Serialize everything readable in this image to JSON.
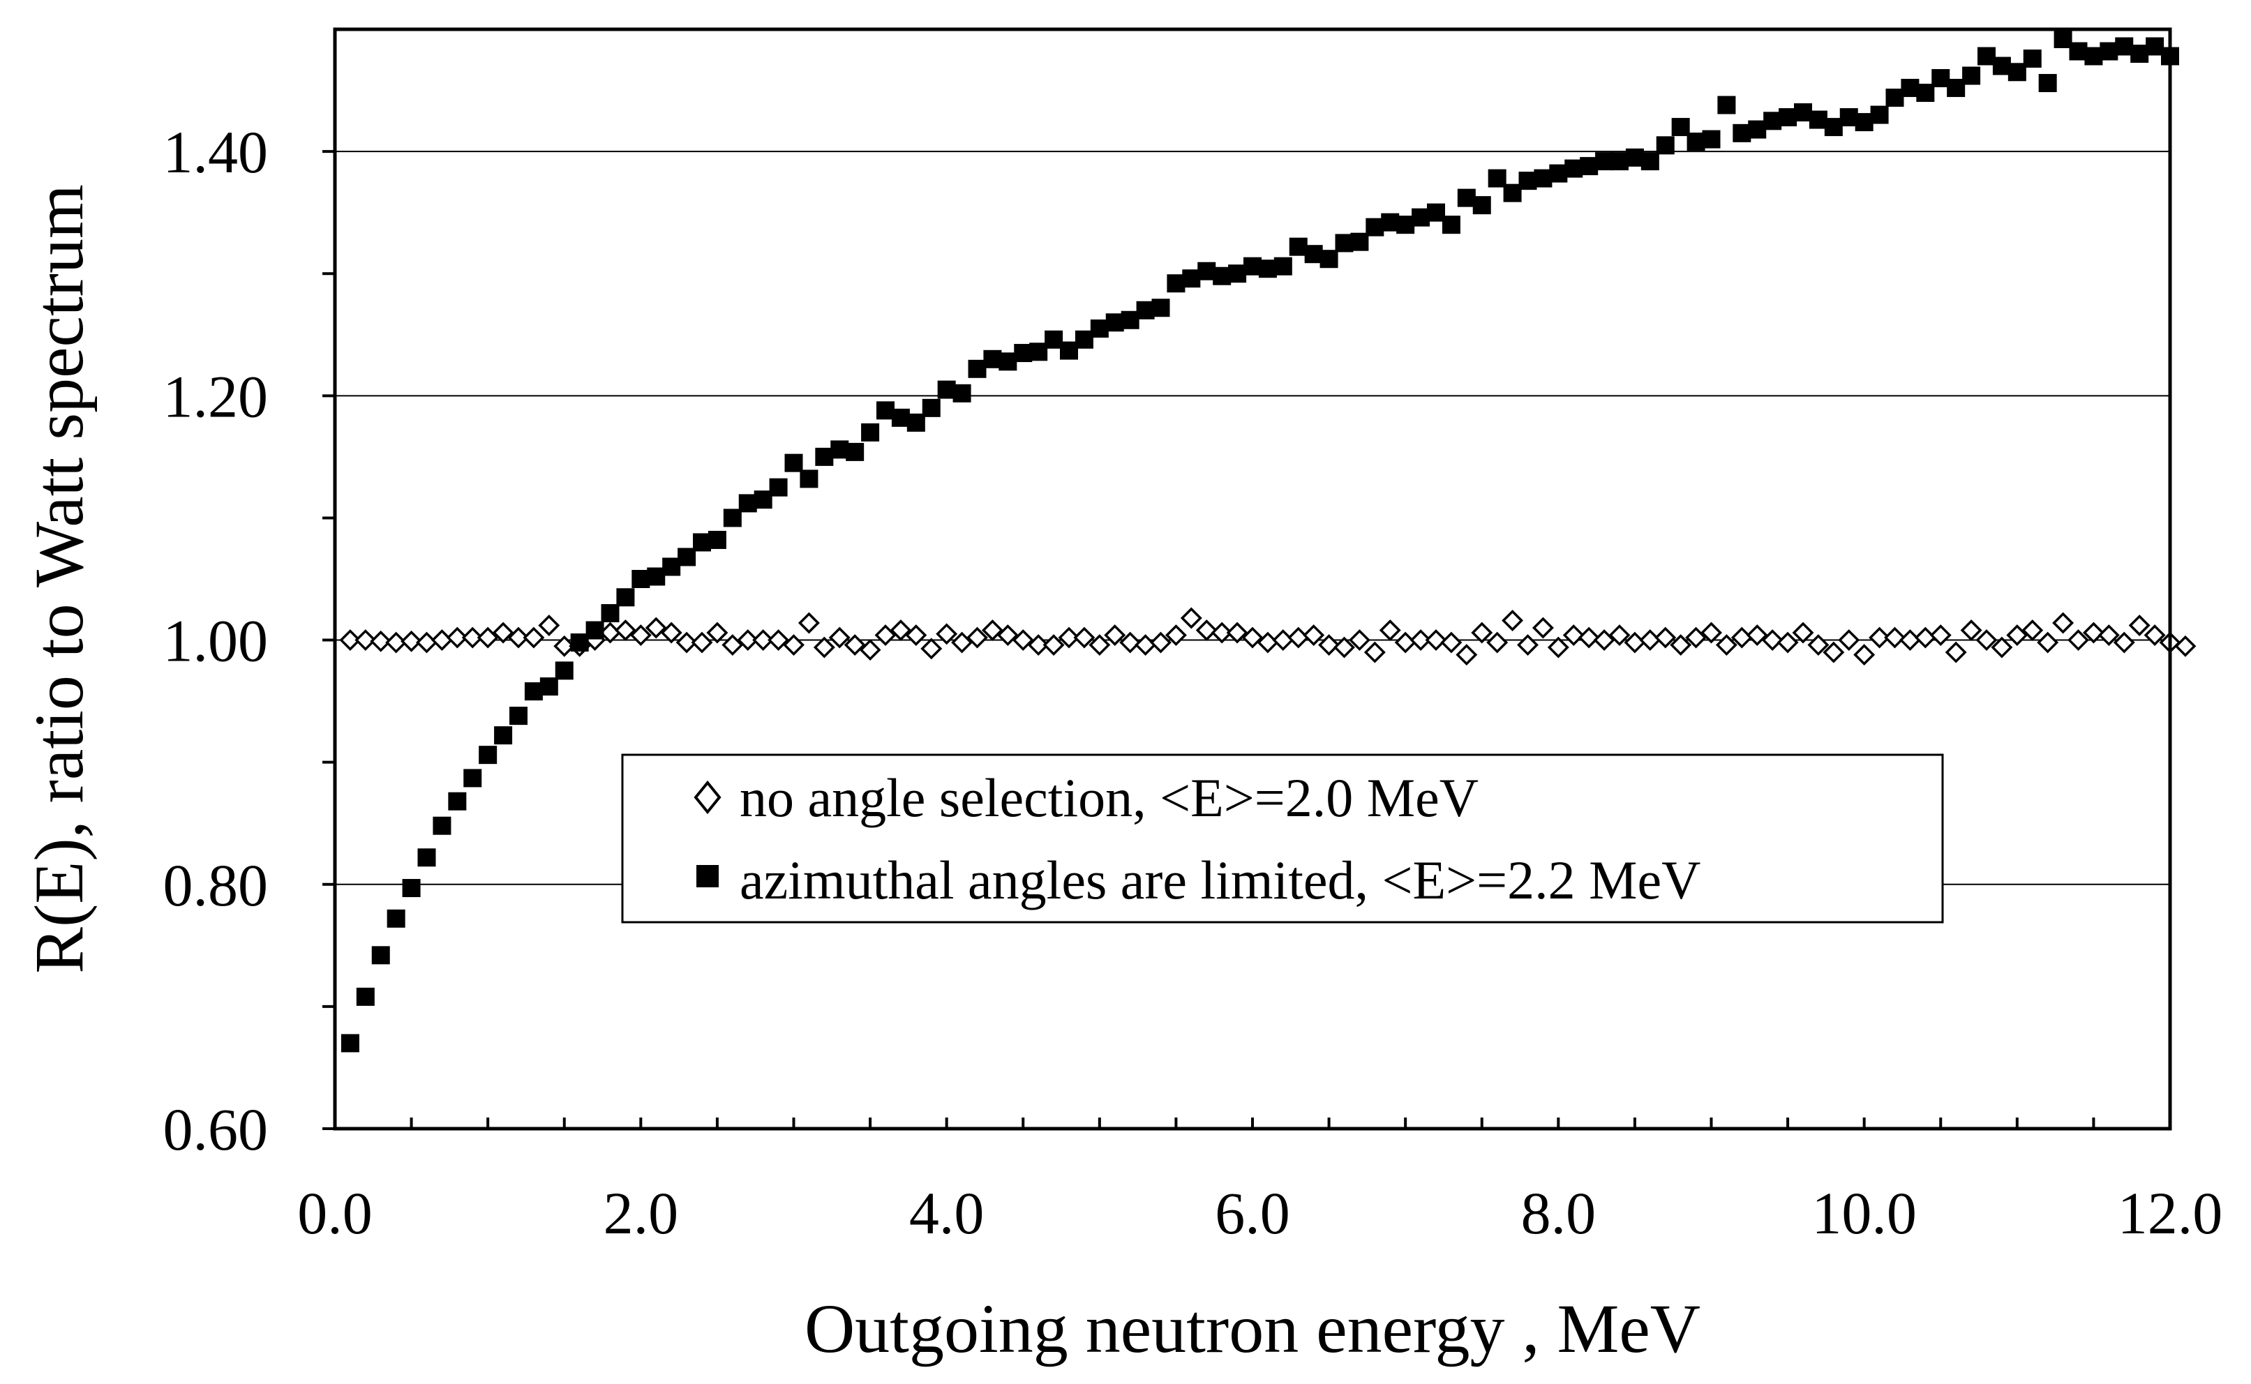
{
  "chart_data": {
    "type": "scatter",
    "title": "",
    "xlabel": "Outgoing neutron energy , MeV",
    "ylabel": "R(E), ratio to Watt spectrum",
    "xlim": [
      0,
      12
    ],
    "ylim": [
      0.6,
      1.5
    ],
    "x_ticks": [
      0,
      2,
      4,
      6,
      8,
      10,
      12
    ],
    "x_tick_labels": [
      "0.0",
      "2.0",
      "4.0",
      "6.0",
      "8.0",
      "10.0",
      "12.0"
    ],
    "y_ticks": [
      0.6,
      0.7,
      0.8,
      0.9,
      1.0,
      1.1,
      1.2,
      1.3,
      1.4
    ],
    "y_tick_labels": [
      "0.60",
      "",
      "0.80",
      "",
      "1.00",
      "",
      "1.20",
      "",
      "1.40"
    ],
    "gridlines_y": [
      0.8,
      1.0,
      1.2,
      1.4
    ],
    "legend_position": "center",
    "series": [
      {
        "name": "no angle selection, <E>=2.0 MeV",
        "marker": "open-diamond",
        "x_start": 0.1,
        "x_step": 0.1,
        "values": [
          1.0,
          1.0,
          0.999,
          0.998,
          0.999,
          0.998,
          1.0,
          1.002,
          1.002,
          1.002,
          1.006,
          1.002,
          1.002,
          1.012,
          0.995,
          0.995,
          1.0,
          1.006,
          1.008,
          1.004,
          1.01,
          1.006,
          0.998,
          0.998,
          1.006,
          0.996,
          1.0,
          1.0,
          1.0,
          0.996,
          1.014,
          0.994,
          1.002,
          0.996,
          0.992,
          1.004,
          1.008,
          1.004,
          0.993,
          1.005,
          0.998,
          1.002,
          1.008,
          1.004,
          1.0,
          0.996,
          0.996,
          1.002,
          1.002,
          0.996,
          1.004,
          0.998,
          0.996,
          0.998,
          1.004,
          1.018,
          1.008,
          1.006,
          1.006,
          1.002,
          0.998,
          1.0,
          1.002,
          1.004,
          0.996,
          0.994,
          1.0,
          0.99,
          1.008,
          0.998,
          1.0,
          1.0,
          0.998,
          0.988,
          1.006,
          0.998,
          1.016,
          0.996,
          1.01,
          0.994,
          1.004,
          1.002,
          1.0,
          1.004,
          0.998,
          1.0,
          1.002,
          0.996,
          1.002,
          1.006,
          0.996,
          1.002,
          1.004,
          1.0,
          0.998,
          1.006,
          0.996,
          0.99,
          1.0,
          0.988,
          1.002,
          1.002,
          1.0,
          1.002,
          1.004,
          0.99,
          1.008,
          1.0,
          0.994,
          1.004,
          1.008,
          0.998,
          1.014,
          1.0,
          1.006,
          1.004,
          0.998,
          1.012,
          1.004,
          0.998,
          0.995
        ]
      },
      {
        "name": "azimuthal angles are limited, <E>=2.2 MeV",
        "marker": "filled-square",
        "x_start": 0.1,
        "x_step": 0.1,
        "values": [
          0.67,
          0.708,
          0.742,
          0.772,
          0.797,
          0.822,
          0.848,
          0.868,
          0.887,
          0.906,
          0.922,
          0.938,
          0.958,
          0.962,
          0.975,
          0.998,
          1.008,
          1.022,
          1.035,
          1.05,
          1.052,
          1.06,
          1.068,
          1.08,
          1.082,
          1.1,
          1.112,
          1.115,
          1.125,
          1.145,
          1.132,
          1.15,
          1.156,
          1.154,
          1.17,
          1.188,
          1.182,
          1.178,
          1.19,
          1.205,
          1.202,
          1.222,
          1.23,
          1.228,
          1.235,
          1.236,
          1.246,
          1.237,
          1.246,
          1.255,
          1.26,
          1.262,
          1.27,
          1.272,
          1.292,
          1.296,
          1.302,
          1.298,
          1.3,
          1.306,
          1.304,
          1.306,
          1.322,
          1.316,
          1.312,
          1.325,
          1.326,
          1.338,
          1.342,
          1.34,
          1.346,
          1.35,
          1.34,
          1.362,
          1.356,
          1.378,
          1.366,
          1.376,
          1.378,
          1.382,
          1.386,
          1.388,
          1.392,
          1.392,
          1.395,
          1.392,
          1.405,
          1.42,
          1.408,
          1.41,
          1.438,
          1.415,
          1.418,
          1.425,
          1.428,
          1.432,
          1.426,
          1.42,
          1.428,
          1.424,
          1.43,
          1.444,
          1.452,
          1.448,
          1.46,
          1.452,
          1.462,
          1.478,
          1.47,
          1.465,
          1.476,
          1.456,
          1.492,
          1.482,
          1.478,
          1.482,
          1.486,
          1.48,
          1.486,
          1.478
        ]
      }
    ]
  }
}
